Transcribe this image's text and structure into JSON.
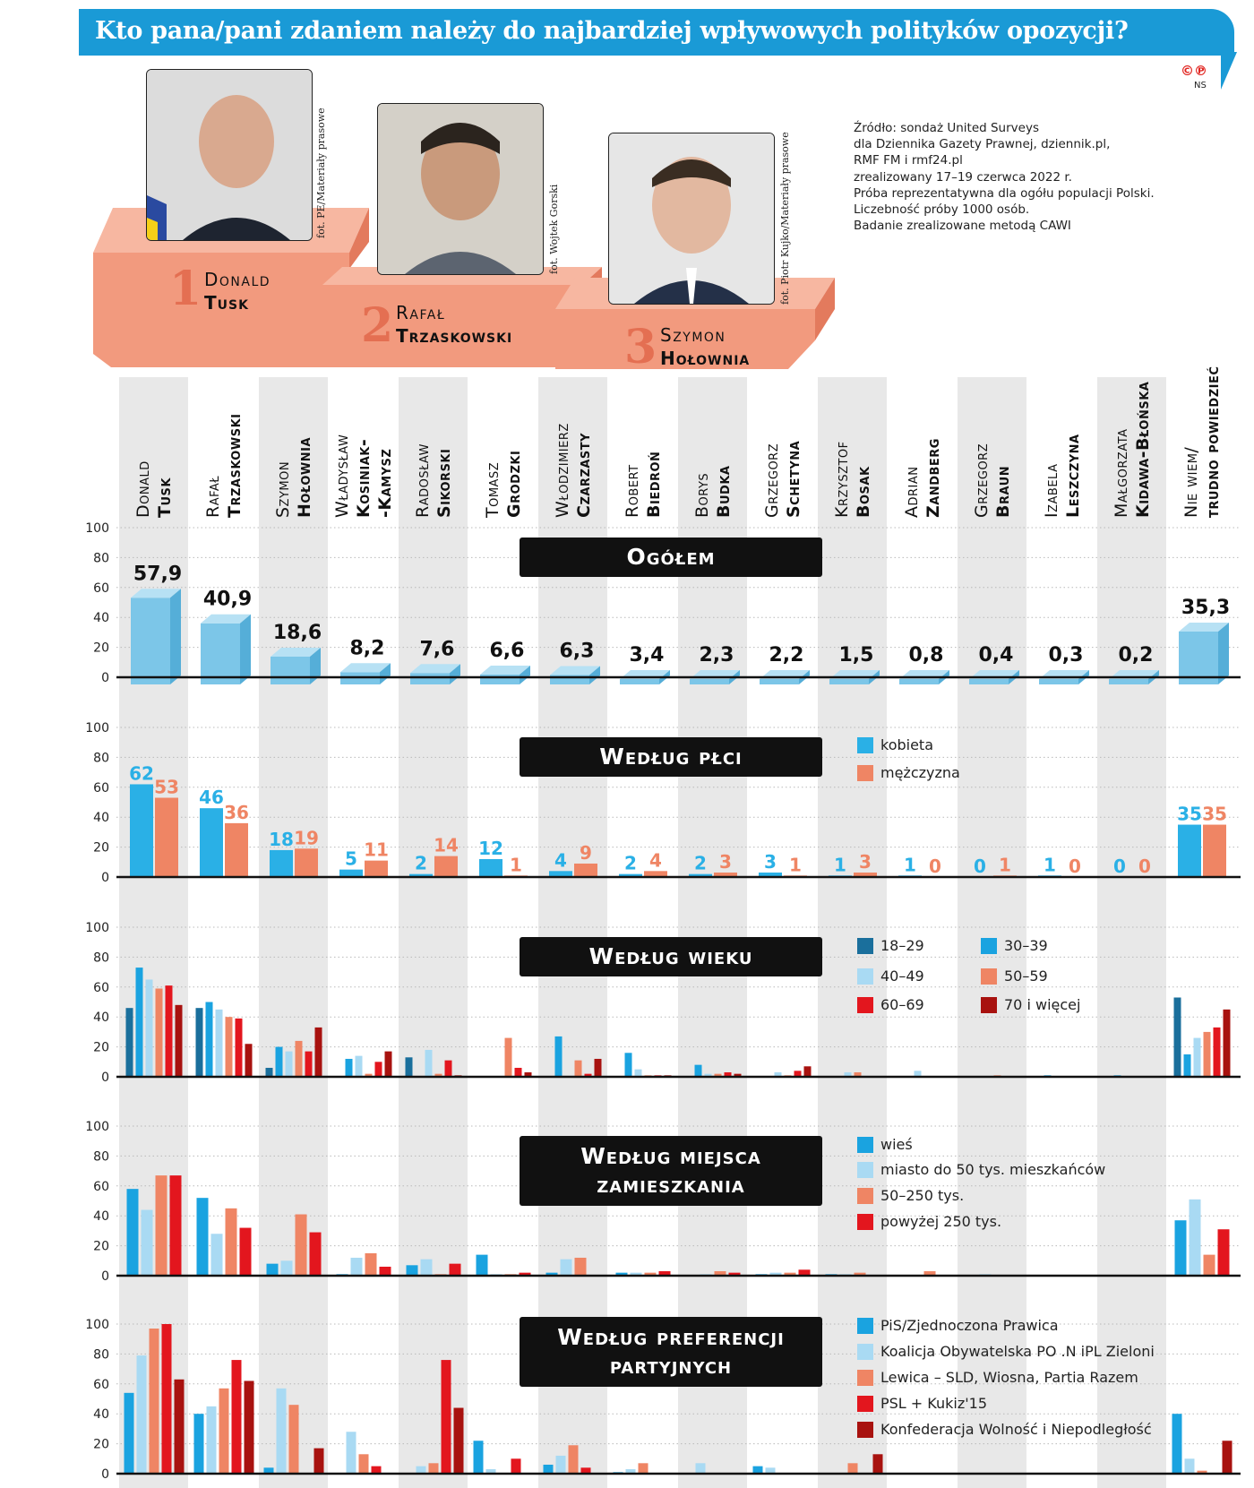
{
  "title": "Kto pana/pani zdaniem należy do najbardziej wpływowych polityków opozycji?",
  "logo": "©℗",
  "logo_sub": "NS",
  "source_lines": [
    "Źródło: sondaż United Surveys",
    "dla Dziennika Gazety Prawnej, dziennik.pl,",
    "RMF FM i rmf24.pl",
    "zrealizowany 17–19 czerwca 2022 r.",
    "Próba reprezentatywna dla ogółu populacji Polski.",
    "Liczebność próby 1000 osób.",
    "Badanie zrealizowane metodą CAWI"
  ],
  "podium": [
    {
      "rank": "1",
      "first": "Donald",
      "last": "Tusk",
      "credit": "fot. PE/Materiały prasowe"
    },
    {
      "rank": "2",
      "first": "Rafał",
      "last": "Trzaskowski",
      "credit": "fot. Wojtek Gorski"
    },
    {
      "rank": "3",
      "first": "Szymon",
      "last": "Hołownia",
      "credit": "fot. Piotr Kujko/Materiały prasowe"
    }
  ],
  "colors": {
    "title_bg": "#1a9ad6",
    "podium": "#f29a7e",
    "podium_dark": "#e37a5d",
    "kobieta": "#2ab0e6",
    "mezczyzna": "#ef8564",
    "bar3d": "#7cc6e8"
  },
  "chart_data": [
    {
      "type": "bar",
      "title": "Ogółem",
      "categories": [
        {
          "first": "Donald",
          "last": "Tusk"
        },
        {
          "first": "Rafał",
          "last": "Trzaskowski"
        },
        {
          "first": "Szymon",
          "last": "Hołownia"
        },
        {
          "first": "Władysław",
          "last": "Kosiniak-",
          "last2": "-Kamysz"
        },
        {
          "first": "Radosław",
          "last": "Sikorski"
        },
        {
          "first": "Tomasz",
          "last": "Grodzki"
        },
        {
          "first": "Włodzimierz",
          "last": "Czarzasty"
        },
        {
          "first": "Robert",
          "last": "Biedroń"
        },
        {
          "first": "Borys",
          "last": "Budka"
        },
        {
          "first": "Grzegorz",
          "last": "Schetyna"
        },
        {
          "first": "Krzysztof",
          "last": "Bosak"
        },
        {
          "first": "Adrian",
          "last": "Zandberg"
        },
        {
          "first": "Grzegorz",
          "last": "Braun"
        },
        {
          "first": "Izabela",
          "last": "Leszczyna"
        },
        {
          "first": "Małgorzata",
          "last": "Kidawa-Błońska"
        },
        {
          "first": "Nie wiem/",
          "last": "trudno powiedzieć"
        }
      ],
      "values": [
        57.9,
        40.9,
        18.6,
        8.2,
        7.6,
        6.6,
        6.3,
        3.4,
        2.3,
        2.2,
        1.5,
        0.8,
        0.4,
        0.3,
        0.2,
        35.3
      ],
      "labels": [
        "57,9",
        "40,9",
        "18,6",
        "8,2",
        "7,6",
        "6,6",
        "6,3",
        "3,4",
        "2,3",
        "2,2",
        "1,5",
        "0,8",
        "0,4",
        "0,3",
        "0,2",
        "35,3"
      ],
      "ylim": [
        0,
        100
      ],
      "yticks": [
        "100",
        "80",
        "60",
        "40",
        "20",
        "0"
      ]
    },
    {
      "type": "bar",
      "title": "Według płci",
      "series": [
        {
          "name": "kobieta",
          "color": "#2ab0e6",
          "values": [
            62,
            46,
            18,
            5,
            2,
            12,
            4,
            2,
            2,
            3,
            1,
            1,
            0,
            1,
            0,
            35
          ]
        },
        {
          "name": "mężczyzna",
          "color": "#ef8564",
          "values": [
            53,
            36,
            19,
            11,
            14,
            1,
            9,
            4,
            3,
            1,
            3,
            0,
            1,
            0,
            0,
            35
          ]
        }
      ],
      "ylim": [
        0,
        100
      ],
      "yticks": [
        "100",
        "80",
        "60",
        "40",
        "20",
        "0"
      ]
    },
    {
      "type": "bar",
      "title": "Według wieku",
      "series": [
        {
          "name": "18–29",
          "color": "#1a6f9c",
          "values": [
            46,
            46,
            6,
            0,
            13,
            0,
            0,
            0,
            0,
            0,
            0,
            0,
            0,
            0,
            0,
            53
          ]
        },
        {
          "name": "30–39",
          "color": "#1aa3e0",
          "values": [
            73,
            50,
            20,
            12,
            0,
            0,
            27,
            16,
            8,
            0,
            0,
            0,
            0,
            1,
            1,
            15
          ]
        },
        {
          "name": "40–49",
          "color": "#a9daf3",
          "values": [
            65,
            45,
            17,
            14,
            18,
            0,
            0,
            5,
            2,
            3,
            3,
            4,
            0,
            0,
            0,
            26
          ]
        },
        {
          "name": "50–59",
          "color": "#ef8564",
          "values": [
            59,
            40,
            24,
            2,
            2,
            26,
            11,
            1,
            2,
            1,
            3,
            0,
            1,
            0,
            0,
            30
          ]
        },
        {
          "name": "60–69",
          "color": "#e3161e",
          "values": [
            61,
            39,
            17,
            10,
            11,
            6,
            2,
            1,
            3,
            4,
            0,
            0,
            0,
            0,
            0,
            33
          ]
        },
        {
          "name": "70 i więcej",
          "color": "#a8120f",
          "values": [
            48,
            22,
            33,
            17,
            1,
            3,
            12,
            1,
            2,
            7,
            0,
            0,
            0,
            0,
            0,
            45
          ]
        }
      ],
      "ylim": [
        0,
        100
      ],
      "yticks": [
        "100",
        "80",
        "60",
        "40",
        "20",
        "0"
      ]
    },
    {
      "type": "bar",
      "title": "Według miejsca zamieszkania",
      "series": [
        {
          "name": "wieś",
          "color": "#1aa3e0",
          "values": [
            58,
            52,
            8,
            1,
            7,
            14,
            2,
            2,
            0,
            1,
            1,
            0,
            0,
            0,
            0,
            37
          ]
        },
        {
          "name": "miasto do 50 tys. mieszkańców",
          "color": "#a9daf3",
          "values": [
            44,
            28,
            10,
            12,
            11,
            1,
            11,
            2,
            1,
            2,
            1,
            0,
            1,
            0,
            0,
            51
          ]
        },
        {
          "name": "50–250 tys.",
          "color": "#ef8564",
          "values": [
            67,
            45,
            41,
            15,
            1,
            1,
            12,
            2,
            3,
            2,
            2,
            3,
            0,
            0,
            0,
            14
          ]
        },
        {
          "name": "powyżej 250 tys.",
          "color": "#e3161e",
          "values": [
            67,
            32,
            29,
            6,
            8,
            2,
            0,
            3,
            2,
            4,
            0,
            0,
            0,
            0,
            0,
            31
          ]
        }
      ],
      "ylim": [
        0,
        100
      ],
      "yticks": [
        "100",
        "80",
        "60",
        "40",
        "20",
        "0"
      ]
    },
    {
      "type": "bar",
      "title": "Według preferencji partyjnych",
      "series": [
        {
          "name": "PiS/Zjednoczona Prawica",
          "color": "#1aa3e0",
          "values": [
            54,
            40,
            4,
            0,
            0,
            22,
            6,
            1,
            0,
            5,
            0,
            0,
            0,
            0,
            0,
            40
          ]
        },
        {
          "name": "Koalicja Obywatelska PO .N iPL Zieloni",
          "color": "#a9daf3",
          "values": [
            79,
            45,
            57,
            28,
            5,
            3,
            12,
            3,
            7,
            4,
            0,
            0,
            0,
            0,
            0,
            10
          ]
        },
        {
          "name": "Lewica – SLD, Wiosna, Partia Razem",
          "color": "#ef8564",
          "values": [
            97,
            57,
            46,
            13,
            7,
            0,
            19,
            7,
            0,
            0,
            7,
            0,
            0,
            0,
            0,
            2
          ]
        },
        {
          "name": "PSL + Kukiz'15",
          "color": "#e3161e",
          "values": [
            100,
            76,
            0,
            5,
            76,
            10,
            4,
            0,
            0,
            0,
            0,
            0,
            0,
            0,
            0,
            0
          ]
        },
        {
          "name": "Konfederacja Wolność i Niepodległość",
          "color": "#a8120f",
          "values": [
            63,
            62,
            17,
            0,
            44,
            0,
            0,
            0,
            0,
            0,
            13,
            0,
            0,
            0,
            0,
            22
          ]
        }
      ],
      "ylim": [
        0,
        100
      ],
      "yticks": [
        "100",
        "80",
        "60",
        "40",
        "20",
        "0"
      ]
    }
  ]
}
